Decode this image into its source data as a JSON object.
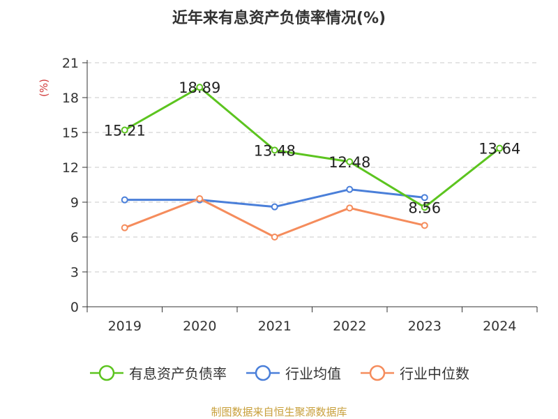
{
  "title": "近年来有息资产负债率情况(%)",
  "source": "制图数据来自恒生聚源数据库",
  "chart_data": {
    "type": "line",
    "categories": [
      "2019",
      "2020",
      "2021",
      "2022",
      "2023",
      "2024"
    ],
    "ylabel": "(%)",
    "ylim": [
      0,
      21
    ],
    "yticks": [
      0,
      3,
      6,
      9,
      12,
      15,
      18,
      21
    ],
    "grid": true,
    "legend_position": "bottom",
    "series": [
      {
        "name": "有息资产负债率",
        "color": "#5cc41f",
        "values": [
          15.21,
          18.89,
          13.48,
          12.48,
          8.56,
          13.64
        ],
        "labels": [
          "15.21",
          "18.89",
          "13.48",
          "12.48",
          "8.56",
          "13.64"
        ]
      },
      {
        "name": "行业均值",
        "color": "#4a7fd9",
        "values": [
          9.2,
          9.2,
          8.6,
          10.1,
          9.4,
          null
        ]
      },
      {
        "name": "行业中位数",
        "color": "#f58c5c",
        "values": [
          6.8,
          9.3,
          6.0,
          8.5,
          7.0,
          null
        ]
      }
    ]
  }
}
